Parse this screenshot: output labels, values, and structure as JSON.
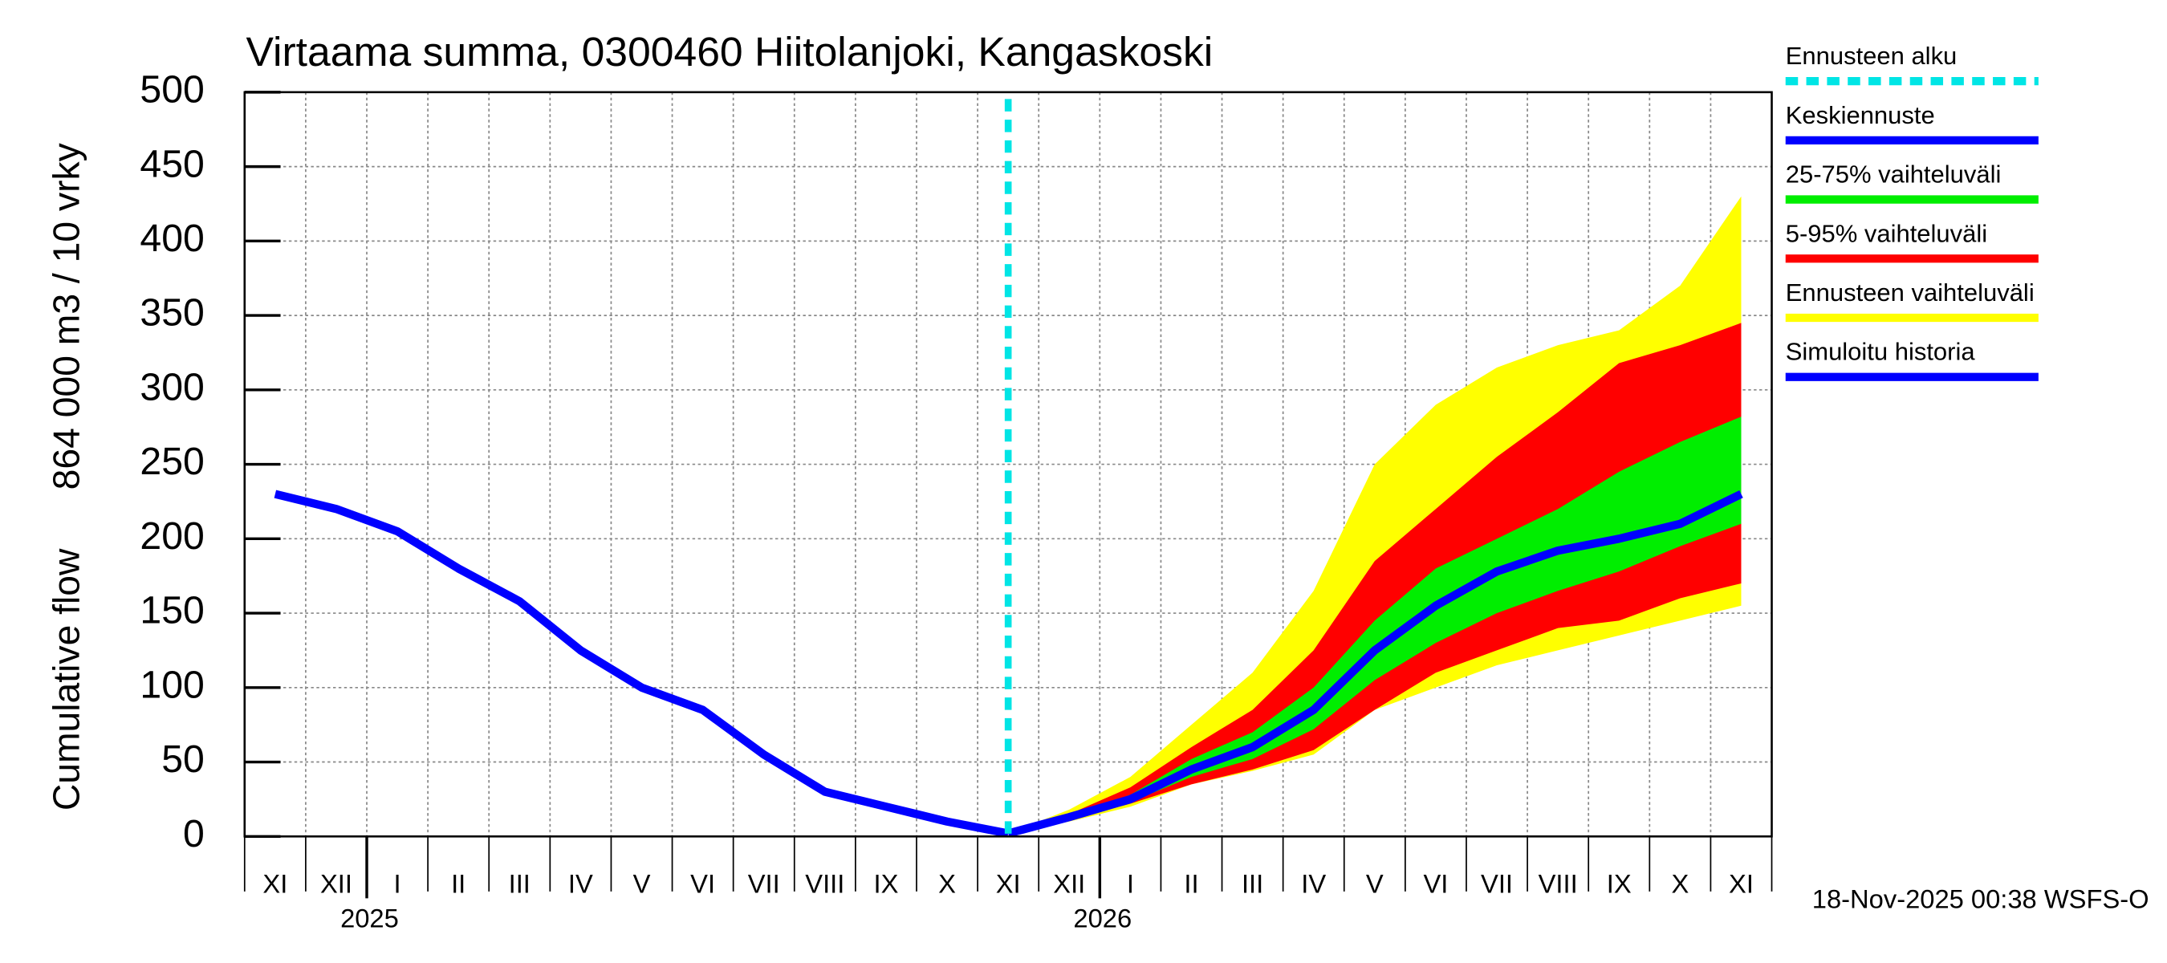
{
  "chart_data": {
    "type": "band-line",
    "title": "Virtaama summa, 0300460 Hiitolanjoki, Kangaskoski",
    "ylabel": [
      "Cumulative flow",
      "864 000 m3 / 10 vrky"
    ],
    "timestamp": "18-Nov-2025 00:38 WSFS-O",
    "categories": [
      "XI",
      "XII",
      "I",
      "II",
      "III",
      "IV",
      "V",
      "VI",
      "VII",
      "VIII",
      "IX",
      "X",
      "XI",
      "XII",
      "I",
      "II",
      "III",
      "IV",
      "V",
      "VI",
      "VII",
      "VIII",
      "IX",
      "X",
      "XI"
    ],
    "year_labels": [
      null,
      null,
      "2025",
      null,
      null,
      null,
      null,
      null,
      null,
      null,
      null,
      null,
      null,
      null,
      "2026",
      null,
      null,
      null,
      null,
      null,
      null,
      null,
      null,
      null,
      null
    ],
    "ylim": [
      0,
      500
    ],
    "yticks": [
      0,
      50,
      100,
      150,
      200,
      250,
      300,
      350,
      400,
      450,
      500
    ],
    "grid": true,
    "forecast_start": {
      "name": "Ennusteen alku",
      "color": "#00e5e5"
    },
    "series": [
      {
        "name": "Ennusteen vaihteluväli",
        "color": "#ffff00",
        "kind": "band",
        "values": [
          null,
          null,
          null,
          null,
          null,
          null,
          null,
          null,
          null,
          null,
          null,
          null,
          2,
          18,
          40,
          75,
          110,
          165,
          250,
          290,
          315,
          330,
          340,
          370,
          430
        ],
        "low": [
          null,
          null,
          null,
          null,
          null,
          null,
          null,
          null,
          null,
          null,
          null,
          null,
          2,
          10,
          20,
          35,
          44,
          55,
          85,
          100,
          115,
          125,
          135,
          145,
          155
        ]
      },
      {
        "name": "5-95% vaihteluväli",
        "color": "#ff0000",
        "kind": "band",
        "values": [
          null,
          null,
          null,
          null,
          null,
          null,
          null,
          null,
          null,
          null,
          null,
          null,
          2,
          15,
          33,
          60,
          85,
          125,
          185,
          220,
          255,
          285,
          318,
          330,
          345
        ],
        "low": [
          null,
          null,
          null,
          null,
          null,
          null,
          null,
          null,
          null,
          null,
          null,
          null,
          2,
          11,
          22,
          35,
          45,
          58,
          85,
          110,
          125,
          140,
          145,
          160,
          170
        ]
      },
      {
        "name": "25-75% vaihteluväli",
        "color": "#00ee00",
        "kind": "band",
        "values": [
          null,
          null,
          null,
          null,
          null,
          null,
          null,
          null,
          null,
          null,
          null,
          null,
          2,
          14,
          28,
          52,
          70,
          100,
          145,
          180,
          200,
          220,
          245,
          265,
          282
        ],
        "low": [
          null,
          null,
          null,
          null,
          null,
          null,
          null,
          null,
          null,
          null,
          null,
          null,
          2,
          12,
          23,
          40,
          52,
          72,
          105,
          130,
          150,
          165,
          178,
          195,
          210
        ]
      },
      {
        "name": "Keskiennuste",
        "color": "#0000ff",
        "kind": "line",
        "values": [
          null,
          null,
          null,
          null,
          null,
          null,
          null,
          null,
          null,
          null,
          null,
          null,
          2,
          13,
          25,
          45,
          60,
          85,
          125,
          155,
          178,
          192,
          200,
          210,
          230
        ]
      },
      {
        "name": "Simuloitu historia",
        "color": "#0000ff",
        "kind": "line",
        "values": [
          230,
          220,
          205,
          180,
          158,
          125,
          100,
          85,
          55,
          30,
          20,
          10,
          2,
          null,
          null,
          null,
          null,
          null,
          null,
          null,
          null,
          null,
          null,
          null,
          null
        ]
      }
    ]
  }
}
